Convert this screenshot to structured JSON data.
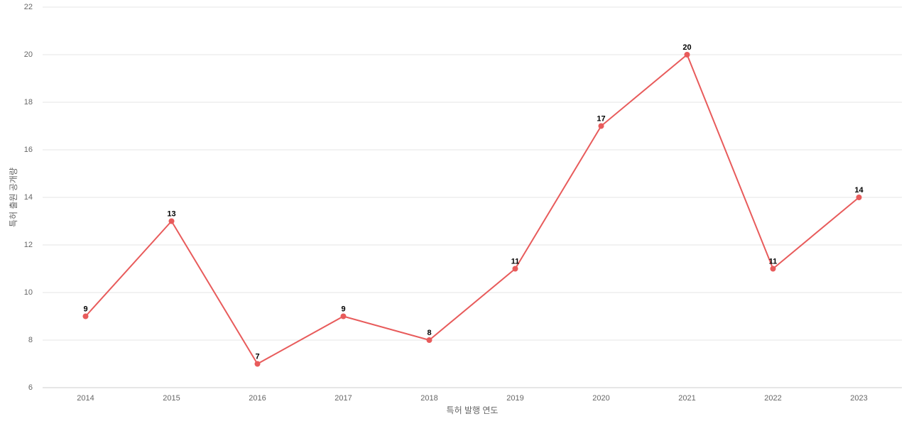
{
  "chart_data": {
    "type": "line",
    "x_label": "특허 발행 연도",
    "y_label": "특허 출원 공개량",
    "categories": [
      "2014",
      "2015",
      "2016",
      "2017",
      "2018",
      "2019",
      "2020",
      "2021",
      "2022",
      "2023"
    ],
    "series": [
      {
        "name": "특허 출원 공개량",
        "color": "#e85b5b",
        "values": [
          9,
          13,
          7,
          9,
          8,
          11,
          17,
          20,
          11,
          14
        ]
      }
    ],
    "ylim": [
      6,
      22
    ],
    "yticks": [
      6,
      8,
      10,
      12,
      14,
      16,
      18,
      20,
      22
    ],
    "grid": true
  }
}
